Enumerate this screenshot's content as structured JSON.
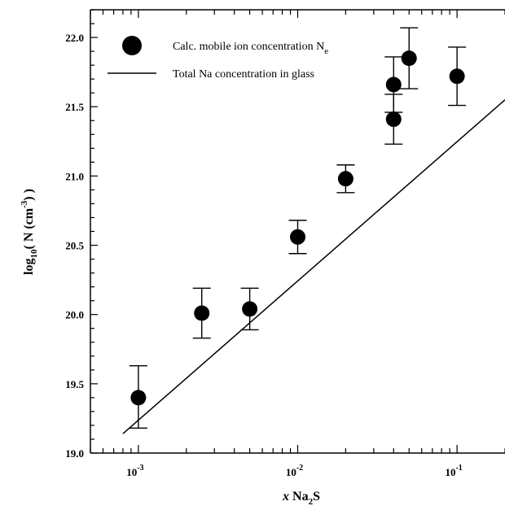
{
  "chart_data": {
    "type": "scatter",
    "xscale": "log",
    "xlim": [
      0.0005,
      0.2
    ],
    "ylim": [
      19.0,
      22.2
    ],
    "xticks": [
      {
        "value": 0.001,
        "base": "10",
        "exp": "-3"
      },
      {
        "value": 0.01,
        "base": "10",
        "exp": "-2"
      },
      {
        "value": 0.1,
        "base": "10",
        "exp": "-1"
      }
    ],
    "yticks": [
      {
        "value": 19.0,
        "label": "19.0"
      },
      {
        "value": 19.5,
        "label": "19.5"
      },
      {
        "value": 20.0,
        "label": "20.0"
      },
      {
        "value": 20.5,
        "label": "20.5"
      },
      {
        "value": 21.0,
        "label": "21.0"
      },
      {
        "value": 21.5,
        "label": "21.5"
      },
      {
        "value": 22.0,
        "label": "22.0"
      }
    ],
    "xlabel": {
      "italic": "x",
      "main": " Na",
      "sub": "2",
      "tail": "S"
    },
    "ylabel": {
      "pre": "log",
      "sub1": "10",
      "mid": "( N   (cm",
      "sup": "-3",
      "post": ") )"
    },
    "grid": false,
    "legend_position": "top-left",
    "series": [
      {
        "kind": "points",
        "legend": {
          "main": "Calc. mobile ion concentration N",
          "sub": "e"
        },
        "points": [
          {
            "x": 0.001,
            "y": 19.4,
            "err_low": 19.18,
            "err_high": 19.63
          },
          {
            "x": 0.0025,
            "y": 20.01,
            "err_low": 19.83,
            "err_high": 20.19
          },
          {
            "x": 0.005,
            "y": 20.04,
            "err_low": 19.89,
            "err_high": 20.19
          },
          {
            "x": 0.01,
            "y": 20.56,
            "err_low": 20.44,
            "err_high": 20.68
          },
          {
            "x": 0.02,
            "y": 20.98,
            "err_low": 20.88,
            "err_high": 21.08
          },
          {
            "x": 0.04,
            "y": 21.41,
            "err_low": 21.23,
            "err_high": 21.59
          },
          {
            "x": 0.04,
            "y": 21.66,
            "err_low": 21.46,
            "err_high": 21.86
          },
          {
            "x": 0.05,
            "y": 21.85,
            "err_low": 21.63,
            "err_high": 22.07
          },
          {
            "x": 0.1,
            "y": 21.72,
            "err_low": 21.51,
            "err_high": 21.93
          }
        ]
      },
      {
        "kind": "line",
        "legend": {
          "main": "Total Na concentration in glass",
          "sub": ""
        },
        "x": [
          0.0008,
          0.2
        ],
        "y": [
          19.14,
          21.55
        ]
      }
    ]
  }
}
